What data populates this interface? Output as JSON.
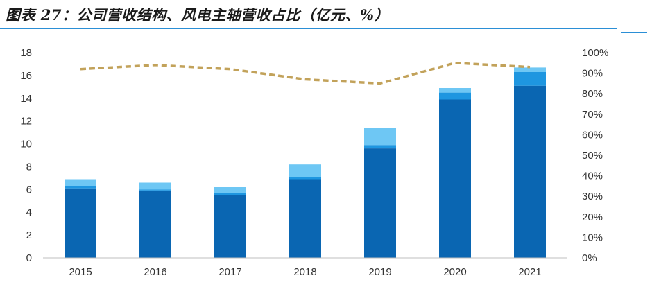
{
  "title": "图表 27：公司营收结构、风电主轴营收占比（亿元、%）",
  "colors": {
    "main": "#0a66b2",
    "mid": "#1e96e0",
    "light": "#6ec7f4",
    "line": "#c2a25a",
    "rule": "#2b8fd6"
  },
  "chart_data": {
    "type": "bar",
    "stacked": true,
    "categories": [
      "2015",
      "2016",
      "2017",
      "2018",
      "2019",
      "2020",
      "2021"
    ],
    "series": [
      {
        "values": [
          6.1,
          5.9,
          5.5,
          6.9,
          9.6,
          13.9,
          15.1
        ],
        "color": "#0a66b2"
      },
      {
        "values": [
          0.2,
          0.1,
          0.2,
          0.2,
          0.3,
          0.6,
          1.2
        ],
        "color": "#1e96e0"
      },
      {
        "values": [
          0.6,
          0.6,
          0.5,
          1.1,
          1.5,
          0.4,
          0.4
        ],
        "color": "#6ec7f4"
      }
    ],
    "line": {
      "axis": "right",
      "values": [
        92,
        94,
        92,
        87,
        85,
        95,
        93
      ],
      "color": "#c2a25a",
      "dashed": true
    },
    "ylim": [
      0,
      18
    ],
    "y_ticks": [
      "0",
      "2",
      "4",
      "6",
      "8",
      "10",
      "12",
      "14",
      "16",
      "18"
    ],
    "y2lim": [
      0,
      100
    ],
    "y2_ticks": [
      "0%",
      "10%",
      "20%",
      "30%",
      "40%",
      "50%",
      "60%",
      "70%",
      "80%",
      "90%",
      "100%"
    ],
    "grid": false,
    "legend": "none"
  }
}
